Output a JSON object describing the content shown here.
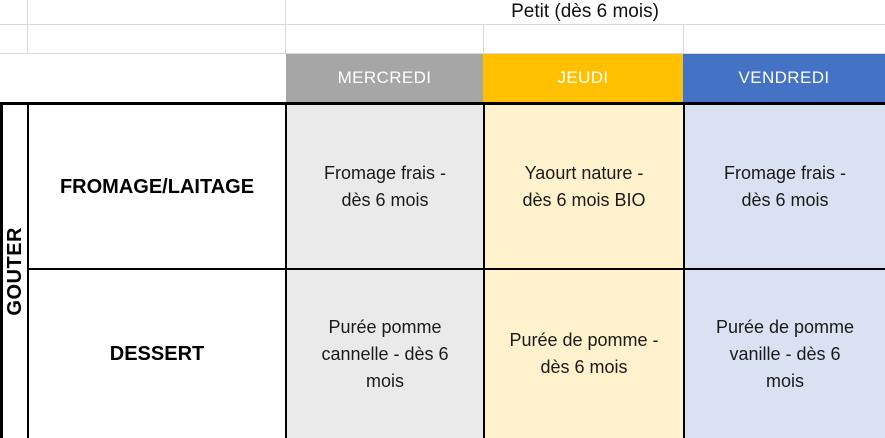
{
  "sheet": {
    "title": "Petit (dès 6 mois)",
    "group_label": "GOUTER",
    "days": [
      {
        "label": "MERCREDI",
        "header_color": "#A6A6A6",
        "body_color": "#EAEAEA"
      },
      {
        "label": "JEUDI",
        "header_color": "#FFC000",
        "body_color": "#FFF2CC"
      },
      {
        "label": "VENDREDI",
        "header_color": "#4472C4",
        "body_color": "#D9E1F2"
      }
    ],
    "rows": [
      {
        "label": "FROMAGE/LAITAGE",
        "cells": [
          [
            "Fromage frais -",
            "dès 6 mois"
          ],
          [
            "Yaourt nature -",
            "dès 6 mois BIO"
          ],
          [
            "Fromage frais -",
            "dès 6 mois"
          ]
        ]
      },
      {
        "label": "DESSERT",
        "cells": [
          [
            "Purée pomme",
            "cannelle - dès 6",
            "mois"
          ],
          [
            "Purée de pomme -",
            "dès 6 mois"
          ],
          [
            "Purée de pomme",
            "vanille - dès 6",
            "mois"
          ]
        ]
      }
    ]
  },
  "colors": {
    "header_text": "#FFFFFF",
    "body_text": "#1A1A1A",
    "border": "#000000",
    "gridline": "#D8D8D8"
  }
}
